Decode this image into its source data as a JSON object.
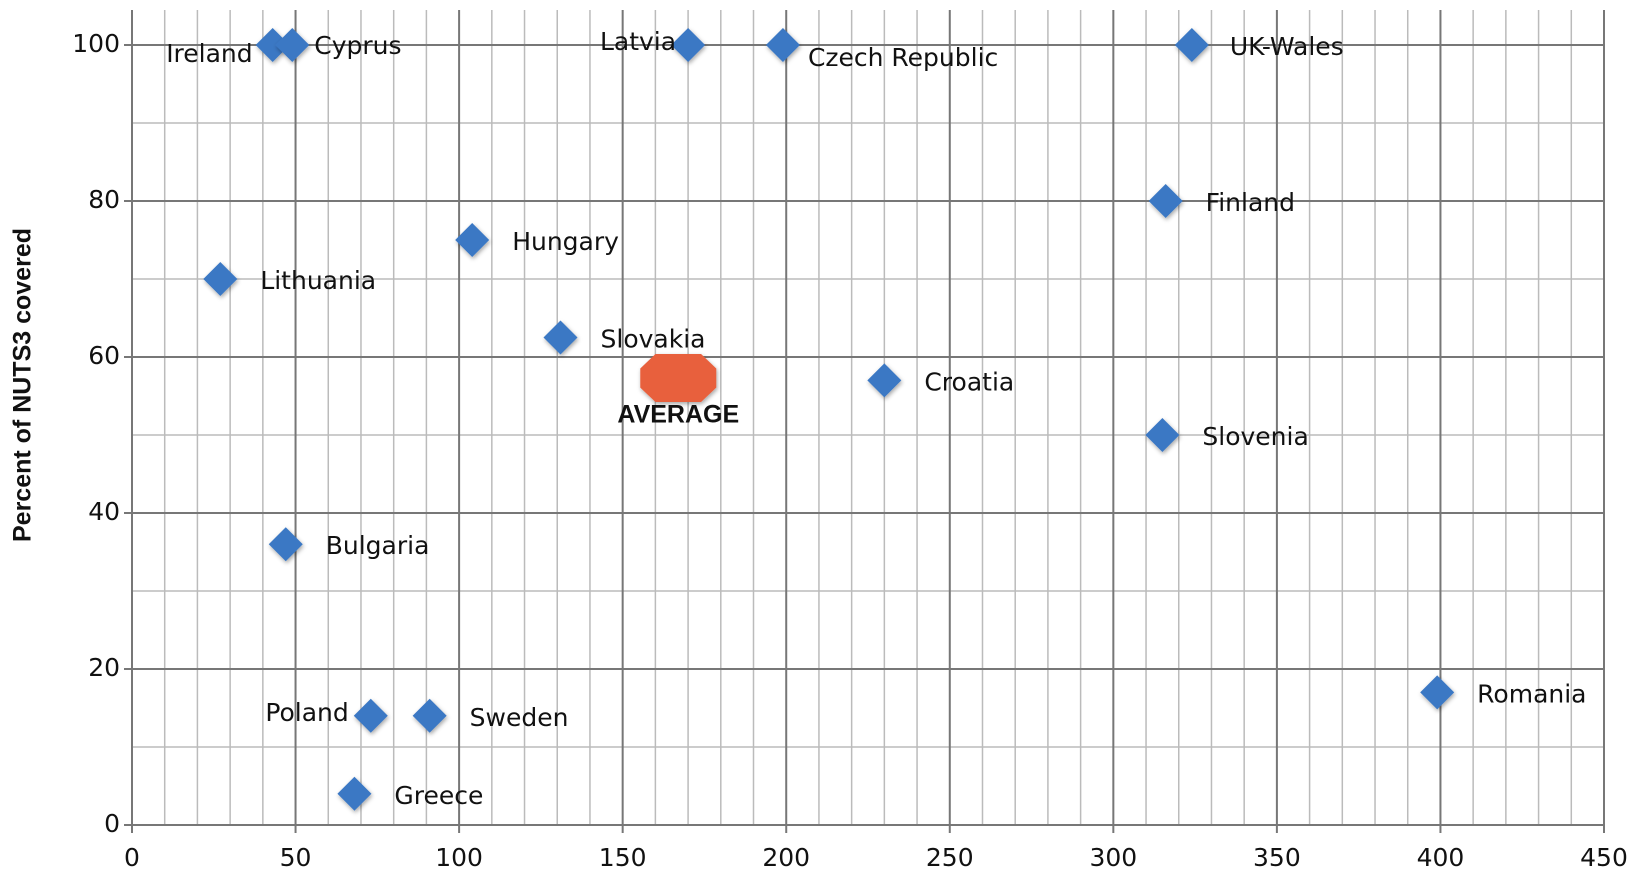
{
  "chart_data": {
    "type": "scatter",
    "y_label": "Percent of NUTS3 covered",
    "xlim": [
      0,
      450
    ],
    "xticks": [
      0,
      50,
      100,
      150,
      200,
      250,
      300,
      350,
      400,
      450
    ],
    "ylim": [
      0,
      100
    ],
    "yticks": [
      0,
      20,
      40,
      60,
      80,
      100
    ],
    "grid": true,
    "minor_grid": {
      "x": 10,
      "y": 10
    },
    "color": "#3a78c4",
    "points": [
      {
        "label": "Ireland",
        "x": 43,
        "y": 100
      },
      {
        "label": "Cyprus",
        "x": 49,
        "y": 100
      },
      {
        "label": "Latvia",
        "x": 170,
        "y": 100
      },
      {
        "label": "Czech Republic",
        "x": 199,
        "y": 100
      },
      {
        "label": "UK-Wales",
        "x": 324,
        "y": 100
      },
      {
        "label": "Finland",
        "x": 316,
        "y": 80
      },
      {
        "label": "Hungary",
        "x": 104,
        "y": 75
      },
      {
        "label": "Lithuania",
        "x": 27,
        "y": 70
      },
      {
        "label": "Slovakia",
        "x": 131,
        "y": 62.5
      },
      {
        "label": "Croatia",
        "x": 230,
        "y": 57
      },
      {
        "label": "Slovenia",
        "x": 315,
        "y": 50
      },
      {
        "label": "Bulgaria",
        "x": 47,
        "y": 36
      },
      {
        "label": "Romania",
        "x": 399,
        "y": 17
      },
      {
        "label": "Poland",
        "x": 73,
        "y": 14
      },
      {
        "label": "Sweden",
        "x": 91,
        "y": 14
      },
      {
        "label": "Greece",
        "x": 68,
        "y": 4
      }
    ],
    "average": {
      "label": "AVERAGE",
      "x": 167,
      "y": 57.3,
      "color": "#e8603c"
    }
  }
}
